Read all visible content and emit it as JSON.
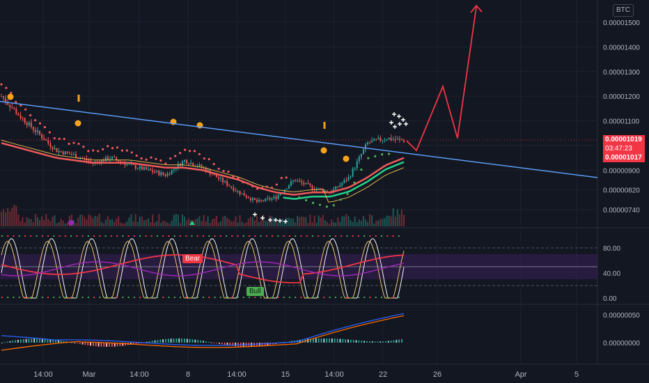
{
  "symbol_badge": "BTC",
  "price_tags": {
    "current": "0.00001019",
    "countdown": "03:47:23",
    "close": "0.00001017"
  },
  "labels": {
    "bear": "Bear",
    "bull": "Bull"
  },
  "colors": {
    "bg": "#131722",
    "grid": "#1e222d",
    "up": "#26a69a",
    "down": "#ef5350",
    "trend": "#5b9cf6",
    "arrow": "#f23645",
    "signal_green": "#22d38a",
    "axis_text": "#b2b5be"
  },
  "chart_data": [
    {
      "type": "line",
      "title": "",
      "panel": "price",
      "y_tick_labels": [
        "0.00001500",
        "0.00001400",
        "0.00001300",
        "0.00001200",
        "0.00001100",
        "0.00001000",
        "0.00000900",
        "0.00000820",
        "0.00000740"
      ],
      "y_tick_values": [
        1.5e-05,
        1.4e-05,
        1.3e-05,
        1.2e-05,
        1.1e-05,
        1e-05,
        9e-06,
        8.2e-06,
        7.4e-06
      ],
      "x_tick_labels": [
        "14:00",
        "Mar",
        "14:00",
        "8",
        "14:00",
        "15",
        "14:00",
        "22",
        "26",
        "Apr",
        "5"
      ],
      "series": [
        {
          "values": [
            1.2e-05,
            1.12e-05,
            1.05e-05,
            9.8e-06,
            9.6e-06,
            9.3e-06,
            9.5e-06,
            9.2e-06,
            9e-06,
            8.8e-06,
            9.4e-06,
            9.1e-06,
            8.6e-06,
            8.1e-06,
            7.7e-06,
            7.9e-06,
            8.6e-06,
            8.3e-06,
            8.1e-06,
            8.7e-06,
            1.01e-05,
            1.03e-05,
            1.02e-05
          ]
        },
        {
          "values": [
            1.01e-05,
            9.9e-06,
            9.7e-06,
            9.5e-06,
            9.4e-06,
            9.3e-06,
            9.3e-06,
            9.3e-06,
            9.2e-06,
            9.1e-06,
            9.1e-06,
            9e-06,
            8.8e-06,
            8.6e-06,
            8.3e-06,
            8.1e-06,
            8e-06,
            8.1e-06,
            8.1e-06,
            8.3e-06,
            8.7e-06,
            9.2e-06,
            9.5e-06
          ]
        }
      ],
      "trendline": {
        "from": 1.19e-05,
        "to": 8.6e-06
      },
      "projection": [
        1.019e-05,
        9.8e-06,
        1.24e-05,
        1.03e-05,
        1.55e-05
      ]
    },
    {
      "type": "line",
      "panel": "stochastic",
      "y_tick_labels": [
        "80.00",
        "40.00",
        "0.00"
      ],
      "y_tick_values": [
        80,
        40,
        0
      ],
      "ylim": [
        0,
        100
      ]
    },
    {
      "type": "bar",
      "panel": "macd",
      "y_tick_labels": [
        "0.00000050",
        "0.00000000"
      ],
      "y_tick_values": [
        5e-07,
        0.0
      ]
    }
  ]
}
